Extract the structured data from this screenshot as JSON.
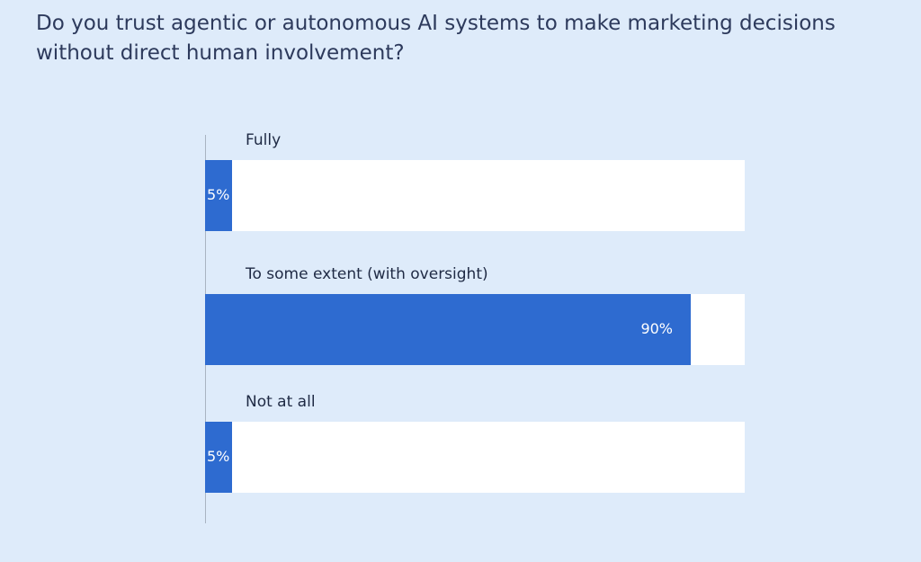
{
  "chart_data": {
    "type": "bar",
    "orientation": "horizontal",
    "title": "Do you trust agentic or autonomous AI systems to make marketing decisions without direct human involvement?",
    "categories": [
      "Fully",
      "To some extent (with oversight)",
      "Not at all"
    ],
    "values": [
      5,
      90,
      5
    ],
    "value_labels": [
      "5%",
      "90%",
      "5%"
    ],
    "color": "#2e6bd0",
    "xlim": [
      0,
      100
    ]
  }
}
